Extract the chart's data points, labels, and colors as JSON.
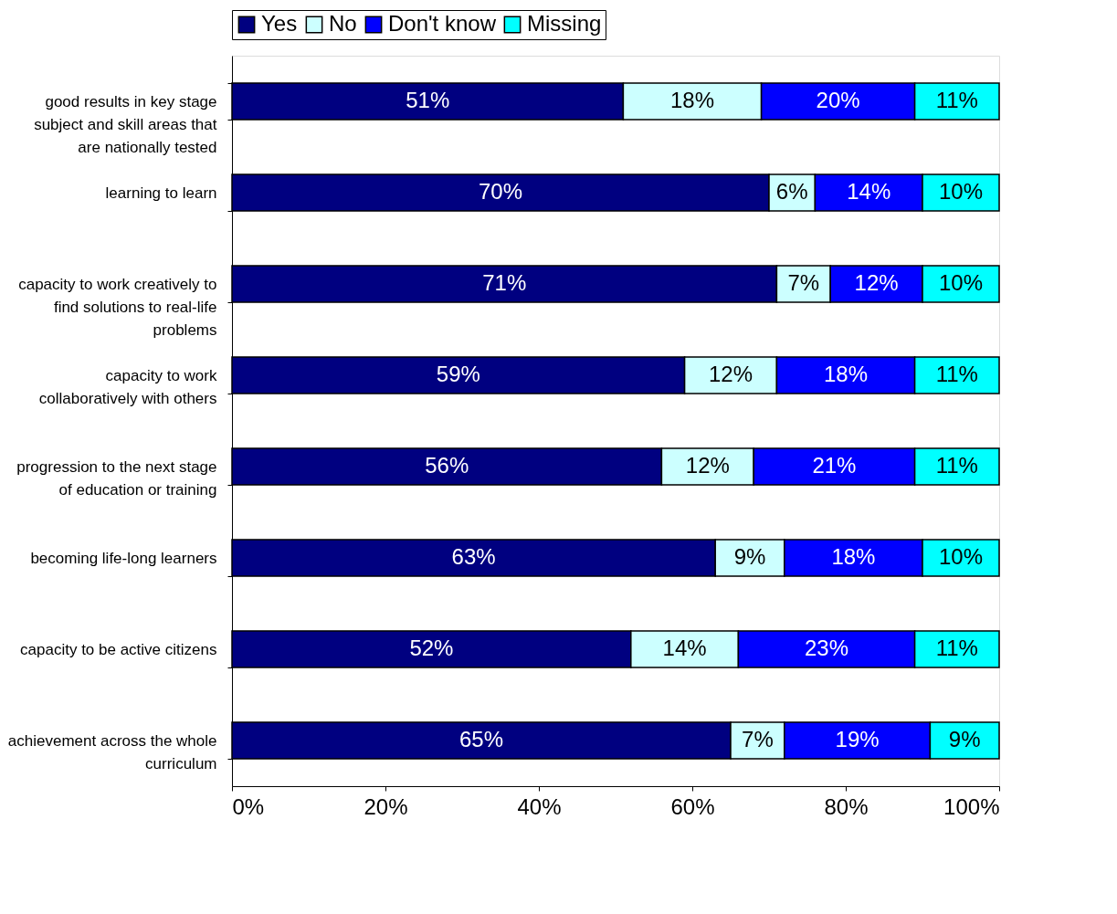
{
  "chart_data": {
    "type": "bar",
    "orientation": "horizontal",
    "stacked": true,
    "categories": [
      "good results in key stage subject and skill areas that are nationally tested",
      "learning to learn",
      "capacity to work creatively to find solutions to real-life problems",
      "capacity to work collaboratively with others",
      "progression to the next stage of education or training",
      "becoming life-long learners",
      "capacity to be active citizens",
      "achievement across the whole curriculum"
    ],
    "series": [
      {
        "name": "Yes",
        "color": "#000080",
        "values": [
          51,
          70,
          71,
          59,
          56,
          63,
          52,
          65
        ],
        "value_labels": [
          "51%",
          "70%",
          "71%",
          "59%",
          "56%",
          "63%",
          "52%",
          "65%"
        ]
      },
      {
        "name": "No",
        "color": "#ccffff",
        "values": [
          18,
          6,
          7,
          12,
          12,
          9,
          14,
          7
        ],
        "value_labels": [
          "18%",
          "6%",
          "7%",
          "12%",
          "12%",
          "9%",
          "14%",
          "7%"
        ]
      },
      {
        "name": "Don't know",
        "color": "#0000ff",
        "values": [
          20,
          14,
          12,
          18,
          21,
          18,
          23,
          19
        ],
        "value_labels": [
          "20%",
          "14%",
          "12%",
          "18%",
          "21%",
          "18%",
          "23%",
          "19%"
        ]
      },
      {
        "name": "Missing",
        "color": "#00ffff",
        "values": [
          11,
          10,
          10,
          11,
          11,
          10,
          11,
          9
        ],
        "value_labels": [
          "11%",
          "10%",
          "10%",
          "11%",
          "11%",
          "10%",
          "11%",
          "9%"
        ]
      }
    ],
    "xlim": [
      0,
      100
    ],
    "xticks": [
      {
        "value": 0,
        "label": "0%"
      },
      {
        "value": 20,
        "label": "20%"
      },
      {
        "value": 40,
        "label": "40%"
      },
      {
        "value": 60,
        "label": "60%"
      },
      {
        "value": 80,
        "label": "80%"
      },
      {
        "value": 100,
        "label": "100%"
      }
    ],
    "grid": false,
    "legend": "top"
  }
}
